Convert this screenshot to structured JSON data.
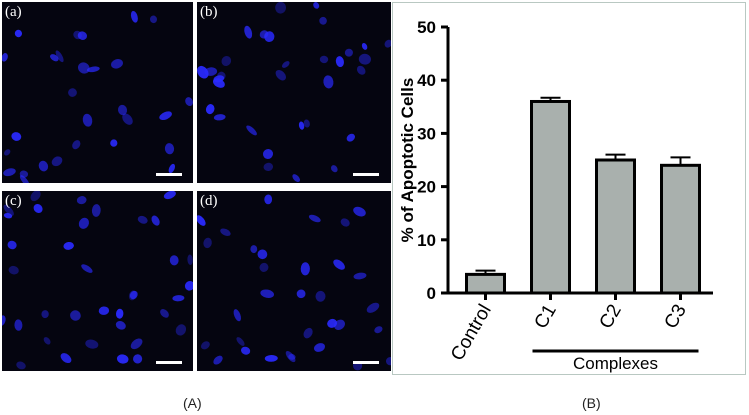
{
  "panels": [
    {
      "tag": "(a)",
      "cell_level": 0.7
    },
    {
      "tag": "(b)",
      "cell_level": 0.8
    },
    {
      "tag": "(c)",
      "cell_level": 0.9
    },
    {
      "tag": "(d)",
      "cell_level": 0.8
    }
  ],
  "captions": {
    "a": "(A)",
    "b": "(B)"
  },
  "colors": {
    "cell": "#2a2aff",
    "background": "#050510",
    "bar": "#a9b0ad",
    "axis": "#000000"
  },
  "chart_data": {
    "type": "bar",
    "categories": [
      "Control",
      "C1",
      "C2",
      "C3"
    ],
    "values": [
      3.5,
      36,
      25,
      24
    ],
    "errors": [
      0.7,
      0.7,
      1.0,
      1.5
    ],
    "ylabel": "% of Apoptotic Cells",
    "ylim": [
      0,
      50
    ],
    "yticks": [
      0,
      10,
      20,
      30,
      40,
      50
    ],
    "ytick_labels": [
      "0",
      "10",
      "20",
      "30",
      "40",
      "50"
    ],
    "group_label": "Complexes",
    "group_members": [
      "C1",
      "C2",
      "C3"
    ],
    "grid": false
  }
}
